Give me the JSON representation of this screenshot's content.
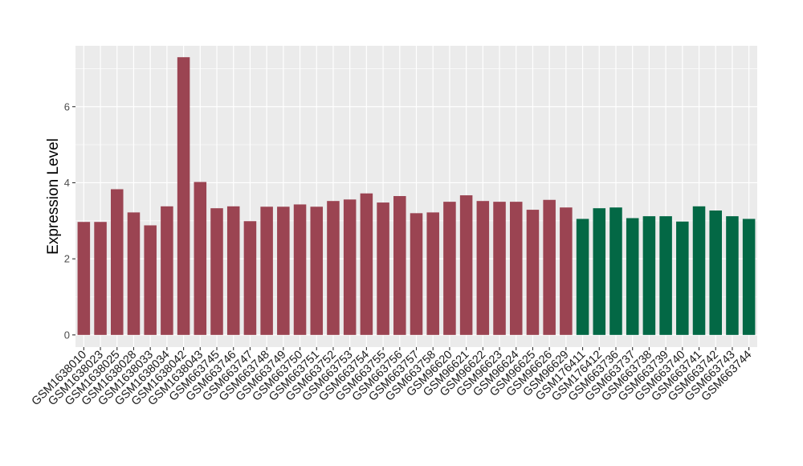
{
  "chart_data": {
    "type": "bar",
    "title": "",
    "xlabel": "",
    "ylabel": "Expression Level",
    "ylim": [
      -0.32,
      7.6
    ],
    "yticks": [
      0,
      2,
      4,
      6
    ],
    "grid": true,
    "legend": "none",
    "categories": [
      "GSM1638010",
      "GSM1638023",
      "GSM1638025",
      "GSM1638028",
      "GSM1638033",
      "GSM1638034",
      "GSM1638042",
      "GSM1638043",
      "GSM663745",
      "GSM663746",
      "GSM663747",
      "GSM663748",
      "GSM663749",
      "GSM663750",
      "GSM663751",
      "GSM663752",
      "GSM663753",
      "GSM663754",
      "GSM663755",
      "GSM663756",
      "GSM663757",
      "GSM663758",
      "GSM96620",
      "GSM96621",
      "GSM96622",
      "GSM96623",
      "GSM96624",
      "GSM96625",
      "GSM96626",
      "GSM96629",
      "GSM176411",
      "GSM176412",
      "GSM663736",
      "GSM663737",
      "GSM663738",
      "GSM663739",
      "GSM663740",
      "GSM663741",
      "GSM663742",
      "GSM663743",
      "GSM663744"
    ],
    "values": [
      2.97,
      2.97,
      3.83,
      3.22,
      2.88,
      3.38,
      7.3,
      4.02,
      3.33,
      3.38,
      2.99,
      3.37,
      3.37,
      3.43,
      3.37,
      3.52,
      3.56,
      3.72,
      3.48,
      3.65,
      3.2,
      3.22,
      3.5,
      3.67,
      3.52,
      3.5,
      3.5,
      3.29,
      3.55,
      3.35,
      3.05,
      3.33,
      3.35,
      3.07,
      3.12,
      3.12,
      2.98,
      3.38,
      3.27,
      3.12,
      3.05
    ],
    "groups": [
      "a",
      "a",
      "a",
      "a",
      "a",
      "a",
      "a",
      "a",
      "a",
      "a",
      "a",
      "a",
      "a",
      "a",
      "a",
      "a",
      "a",
      "a",
      "a",
      "a",
      "a",
      "a",
      "a",
      "a",
      "a",
      "a",
      "a",
      "a",
      "a",
      "a",
      "b",
      "b",
      "b",
      "b",
      "b",
      "b",
      "b",
      "b",
      "b",
      "b",
      "b"
    ],
    "colors": {
      "a": "#9b4452",
      "b": "#036845"
    },
    "panel_background": "#ebebeb",
    "grid_color": "#ffffff"
  }
}
